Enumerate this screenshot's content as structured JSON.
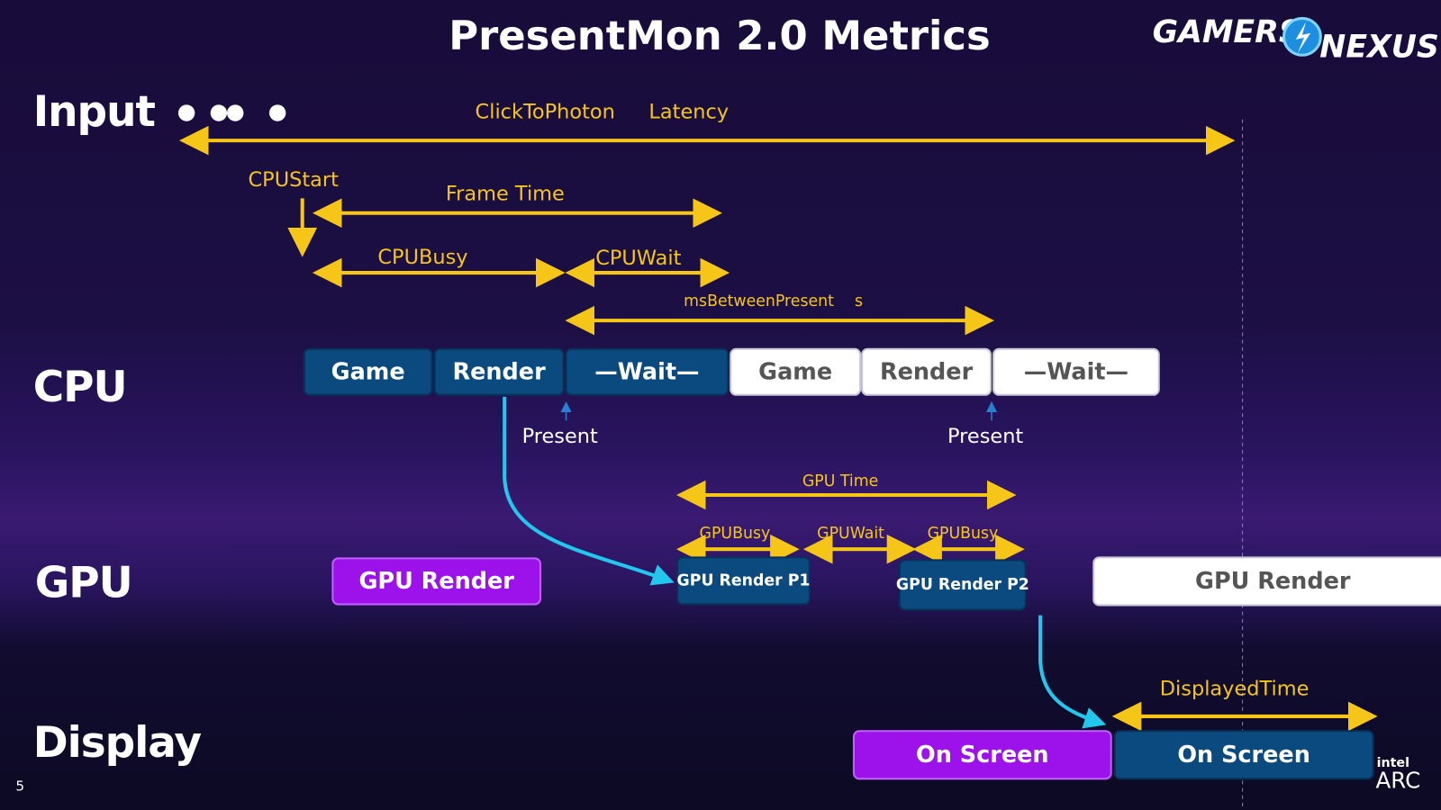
{
  "title": "PresentMon 2.0 Metrics",
  "logo": {
    "text": "GAMERS NEXUS",
    "brand": "intel ARC"
  },
  "slide_number": "5",
  "colors": {
    "accent_yellow": "#f5c518",
    "cpu_box": "#0b4a7e",
    "gpu_purple": "#9d12ea",
    "flow_cyan": "#22c7ee",
    "white_box": "#ffffff"
  },
  "rows": {
    "input": "Input",
    "cpu": "CPU",
    "gpu": "GPU",
    "display": "Display"
  },
  "metrics": {
    "click_to_photon": "ClickToPhoton",
    "latency": "Latency",
    "cpu_start": "CPUStart",
    "frame_time": "Frame Time",
    "cpu_busy": "CPUBusy",
    "cpu_wait": "CPUWait",
    "ms_between_presents": "msBetweenPresent",
    "ms_between_presents_suffix": "s",
    "gpu_time": "GPU Time",
    "gpu_busy_1": "GPUBusy",
    "gpu_wait": "GPUWait",
    "gpu_busy_2": "GPUBusy",
    "displayed_time": "DisplayedTime"
  },
  "cpu_blocks": [
    {
      "label": "Game",
      "style": "blue"
    },
    {
      "label": "Render",
      "style": "blue"
    },
    {
      "label": "—Wait—",
      "style": "blue"
    },
    {
      "label": "Game",
      "style": "white"
    },
    {
      "label": "Render",
      "style": "white"
    },
    {
      "label": "—Wait—",
      "style": "white"
    }
  ],
  "present_labels": [
    "Present",
    "Present"
  ],
  "gpu_blocks": [
    {
      "label": "GPU Render",
      "style": "purple"
    },
    {
      "label": "GPU Render P1",
      "style": "blue"
    },
    {
      "label": "GPU Render P2",
      "style": "blue"
    },
    {
      "label": "GPU Render",
      "style": "white"
    }
  ],
  "display_blocks": [
    {
      "label": "On Screen",
      "style": "purple"
    },
    {
      "label": "On Screen",
      "style": "blue"
    }
  ]
}
